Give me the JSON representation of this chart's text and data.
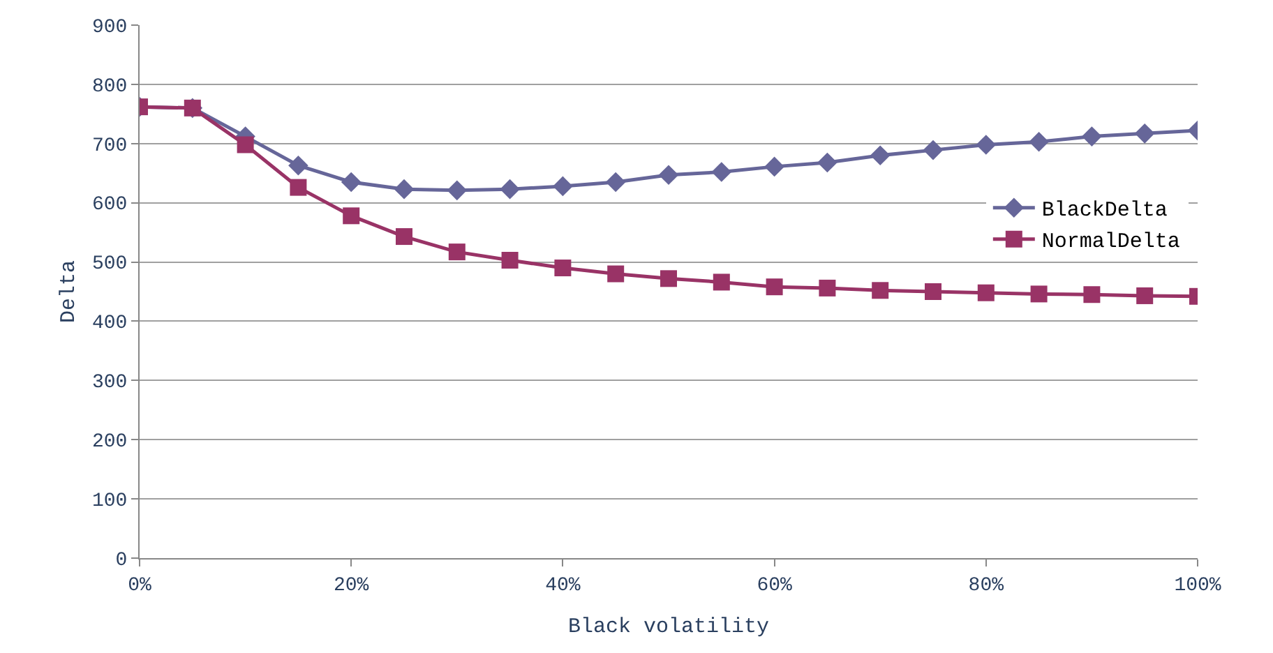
{
  "chart_data": {
    "type": "line",
    "xlabel": "Black volatility",
    "ylabel": "Delta",
    "x": [
      0,
      5,
      10,
      15,
      20,
      25,
      30,
      35,
      40,
      45,
      50,
      55,
      60,
      65,
      70,
      75,
      80,
      85,
      90,
      95,
      100
    ],
    "series": [
      {
        "name": "BlackDelta",
        "color": "#666699",
        "marker": "diamond",
        "values": [
          762,
          760,
          712,
          663,
          635,
          623,
          621,
          623,
          628,
          635,
          647,
          652,
          661,
          668,
          680,
          689,
          698,
          703,
          712,
          717,
          722
        ]
      },
      {
        "name": "NormalDelta",
        "color": "#993366",
        "marker": "square",
        "values": [
          762,
          760,
          698,
          626,
          578,
          543,
          517,
          503,
          490,
          480,
          472,
          466,
          458,
          456,
          452,
          450,
          448,
          446,
          445,
          443,
          442
        ]
      }
    ],
    "xlim": [
      0,
      100
    ],
    "xticks": [
      {
        "value": 0,
        "label": "0%"
      },
      {
        "value": 20,
        "label": "20%"
      },
      {
        "value": 40,
        "label": "40%"
      },
      {
        "value": 60,
        "label": "60%"
      },
      {
        "value": 80,
        "label": "80%"
      },
      {
        "value": 100,
        "label": "100%"
      }
    ],
    "ylim": [
      0,
      900
    ],
    "yticks": [
      0,
      100,
      200,
      300,
      400,
      500,
      600,
      700,
      800,
      900
    ],
    "grid": "y",
    "legend": "right"
  }
}
